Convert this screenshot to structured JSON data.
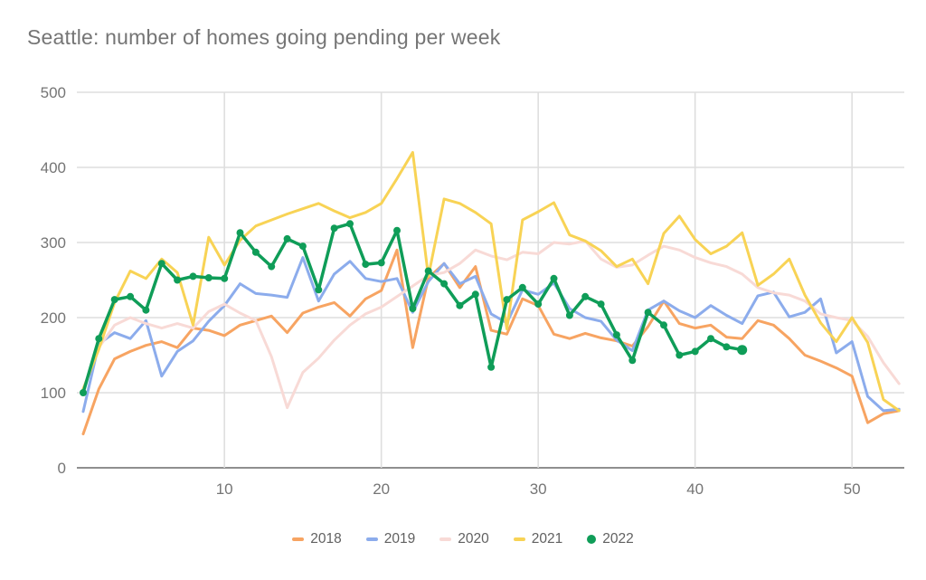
{
  "title": "Seattle: number of homes going pending per week",
  "chart_data": {
    "type": "line",
    "title": "Seattle: number of homes going pending per week",
    "xlabel": "",
    "ylabel": "",
    "x_unit": "week of year",
    "xlim": [
      1,
      53
    ],
    "ylim": [
      0,
      500
    ],
    "xticks": [
      10,
      20,
      30,
      40,
      50
    ],
    "yticks": [
      0,
      100,
      200,
      300,
      400,
      500
    ],
    "grid": true,
    "legend_position": "bottom",
    "series": [
      {
        "name": "2018",
        "color": "#F7A462",
        "markers": false,
        "values": [
          45,
          105,
          145,
          155,
          163,
          168,
          160,
          186,
          183,
          176,
          190,
          196,
          202,
          180,
          206,
          214,
          220,
          202,
          225,
          236,
          290,
          160,
          253,
          272,
          240,
          268,
          183,
          178,
          225,
          216,
          178,
          172,
          179,
          173,
          169,
          162,
          188,
          222,
          192,
          186,
          190,
          174,
          172,
          196,
          190,
          172,
          150,
          142,
          133,
          122,
          60,
          72,
          76
        ]
      },
      {
        "name": "2019",
        "color": "#8CACEC",
        "markers": false,
        "values": [
          75,
          165,
          180,
          172,
          196,
          122,
          155,
          169,
          195,
          216,
          245,
          232,
          230,
          227,
          280,
          222,
          258,
          275,
          252,
          248,
          252,
          207,
          248,
          272,
          245,
          255,
          205,
          193,
          237,
          231,
          246,
          212,
          200,
          195,
          170,
          156,
          210,
          222,
          209,
          200,
          216,
          203,
          192,
          229,
          234,
          201,
          207,
          225,
          153,
          168,
          95,
          76,
          78
        ]
      },
      {
        "name": "2020",
        "color": "#F8DAD6",
        "markers": false,
        "values": [
          105,
          160,
          190,
          200,
          192,
          186,
          192,
          186,
          208,
          218,
          206,
          196,
          148,
          80,
          127,
          146,
          170,
          190,
          205,
          214,
          228,
          242,
          256,
          260,
          272,
          290,
          282,
          277,
          287,
          285,
          300,
          298,
          302,
          278,
          267,
          270,
          283,
          295,
          290,
          280,
          273,
          268,
          258,
          240,
          233,
          230,
          222,
          205,
          200,
          196,
          175,
          140,
          112
        ]
      },
      {
        "name": "2021",
        "color": "#F8D355",
        "markers": false,
        "values": [
          105,
          158,
          220,
          262,
          252,
          278,
          260,
          190,
          307,
          270,
          303,
          322,
          330,
          338,
          345,
          352,
          342,
          333,
          340,
          352,
          385,
          420,
          255,
          358,
          352,
          340,
          325,
          185,
          330,
          341,
          353,
          310,
          302,
          289,
          268,
          278,
          245,
          312,
          335,
          304,
          285,
          295,
          313,
          243,
          258,
          278,
          230,
          193,
          168,
          200,
          167,
          91,
          76
        ]
      },
      {
        "name": "2022",
        "color": "#0F9D58",
        "markers": true,
        "values": [
          100,
          172,
          224,
          228,
          210,
          272,
          250,
          255,
          253,
          252,
          313,
          287,
          268,
          305,
          295,
          237,
          319,
          325,
          271,
          273,
          316,
          212,
          262,
          245,
          216,
          231,
          134,
          224,
          240,
          218,
          252,
          203,
          228,
          218,
          177,
          143,
          207,
          190,
          150,
          155,
          172,
          161,
          157,
          null,
          null,
          null,
          null,
          null,
          null,
          null,
          null,
          null,
          null
        ]
      }
    ]
  }
}
